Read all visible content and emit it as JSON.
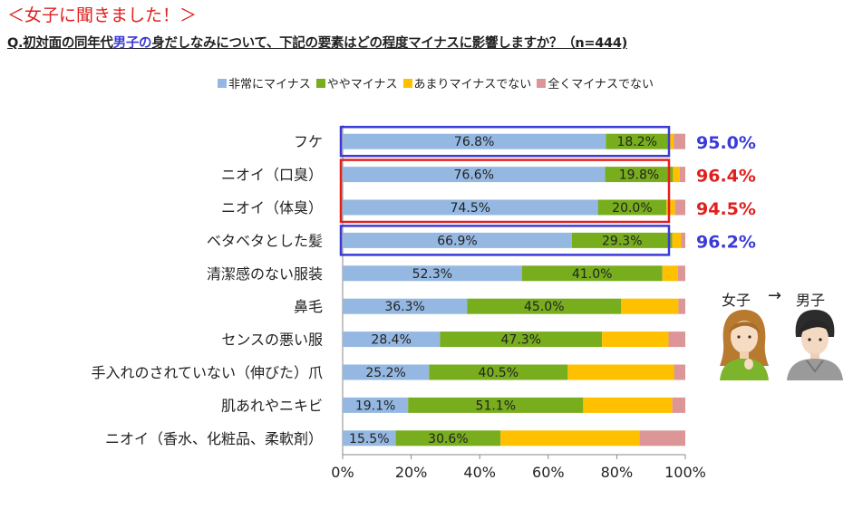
{
  "header": {
    "title": "＜女子に聞きました！＞",
    "question_prefix": "Q.初対面の同年代",
    "question_highlight": "男子の",
    "question_suffix": "身だしなみについて、下記の要素はどの程度マイナスに影響しますか？（n=444)"
  },
  "chart_data": {
    "type": "bar",
    "orientation": "horizontal",
    "stacked": true,
    "categories": [
      "フケ",
      "ニオイ（口臭）",
      "ニオイ（体臭）",
      "ベタベタとした髪",
      "清潔感のない服装",
      "鼻毛",
      "センスの悪い服",
      "手入れのされていない（伸びた）爪",
      "肌あれやニキビ",
      "ニオイ（香水、化粧品、柔軟剤）"
    ],
    "series": [
      {
        "name": "非常にマイナス",
        "color": "#95b8e2",
        "values": [
          76.8,
          76.6,
          74.5,
          66.9,
          52.3,
          36.3,
          28.4,
          25.2,
          19.1,
          15.5
        ],
        "labels": [
          "76.8%",
          "76.6%",
          "74.5%",
          "66.9%",
          "52.3%",
          "36.3%",
          "28.4%",
          "25.2%",
          "19.1%",
          "15.5%"
        ]
      },
      {
        "name": "ややマイナス",
        "color": "#78ad1e",
        "values": [
          18.2,
          19.8,
          20.0,
          29.3,
          41.0,
          45.0,
          47.3,
          40.5,
          51.1,
          30.6
        ],
        "labels": [
          "18.2%",
          "19.8%",
          "20.0%",
          "29.3%",
          "41.0%",
          "45.0%",
          "47.3%",
          "40.5%",
          "51.1%",
          "30.6%"
        ]
      },
      {
        "name": "あまりマイナスでない",
        "color": "#ffc000",
        "values": [
          1.6,
          2.0,
          2.5,
          2.6,
          4.5,
          16.7,
          19.4,
          31.0,
          26.0,
          40.5
        ]
      },
      {
        "name": "全くマイナスでない",
        "color": "#dc9697",
        "values": [
          3.4,
          1.6,
          3.0,
          1.2,
          2.2,
          2.0,
          4.9,
          3.3,
          3.8,
          13.4
        ]
      }
    ],
    "x_ticks": [
      "0%",
      "20%",
      "40%",
      "60%",
      "80%",
      "100%"
    ],
    "xlim": [
      0,
      100
    ],
    "legend_position": "top",
    "totals": [
      {
        "label": "95.0%",
        "color": "#3a3ad8"
      },
      {
        "label": "96.4%",
        "color": "#e0201f"
      },
      {
        "label": "94.5%",
        "color": "#e0201f"
      },
      {
        "label": "96.2%",
        "color": "#3a3ad8"
      }
    ],
    "highlight_boxes": [
      {
        "rows": [
          0,
          0
        ],
        "color": "#3a3ad8"
      },
      {
        "rows": [
          1,
          2
        ],
        "color": "#e0201f"
      },
      {
        "rows": [
          3,
          3
        ],
        "color": "#3a3ad8"
      }
    ]
  },
  "persona": {
    "from": "女子",
    "arrow": "→",
    "to": "男子"
  }
}
